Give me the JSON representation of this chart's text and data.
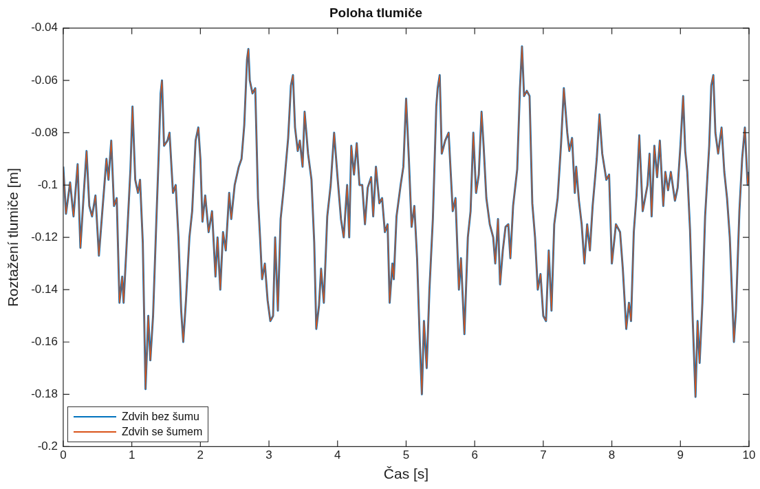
{
  "chart_data": {
    "type": "line",
    "title": "Poloha tlumiče",
    "xlabel": "Čas [s]",
    "ylabel": "Roztažení tlumiče [m]",
    "x": [
      0,
      0.04,
      0.1,
      0.15,
      0.21,
      0.25,
      0.3,
      0.34,
      0.38,
      0.42,
      0.47,
      0.52,
      0.57,
      0.63,
      0.66,
      0.7,
      0.74,
      0.78,
      0.82,
      0.86,
      0.88,
      0.93,
      0.98,
      1.01,
      1.05,
      1.09,
      1.12,
      1.16,
      1.2,
      1.24,
      1.27,
      1.31,
      1.36,
      1.39,
      1.42,
      1.44,
      1.47,
      1.52,
      1.55,
      1.6,
      1.64,
      1.68,
      1.72,
      1.75,
      1.79,
      1.84,
      1.88,
      1.93,
      1.97,
      2,
      2.03,
      2.07,
      2.12,
      2.17,
      2.22,
      2.25,
      2.29,
      2.33,
      2.37,
      2.42,
      2.45,
      2.5,
      2.56,
      2.6,
      2.64,
      2.68,
      2.7,
      2.72,
      2.76,
      2.8,
      2.84,
      2.87,
      2.9,
      2.94,
      2.98,
      3.02,
      3.06,
      3.09,
      3.13,
      3.17,
      3.22,
      3.28,
      3.32,
      3.35,
      3.38,
      3.42,
      3.45,
      3.49,
      3.52,
      3.57,
      3.62,
      3.66,
      3.69,
      3.73,
      3.76,
      3.8,
      3.85,
      3.9,
      3.95,
      4,
      4.05,
      4.09,
      4.14,
      4.17,
      4.2,
      4.24,
      4.28,
      4.32,
      4.36,
      4.4,
      4.44,
      4.49,
      4.52,
      4.56,
      4.61,
      4.65,
      4.69,
      4.73,
      4.76,
      4.8,
      4.82,
      4.86,
      4.92,
      4.96,
      5,
      5.04,
      5.08,
      5.12,
      5.16,
      5.2,
      5.23,
      5.26,
      5.3,
      5.34,
      5.39,
      5.44,
      5.46,
      5.49,
      5.52,
      5.57,
      5.62,
      5.68,
      5.72,
      5.77,
      5.8,
      5.85,
      5.9,
      5.94,
      5.98,
      6.02,
      6.06,
      6.1,
      6.13,
      6.17,
      6.22,
      6.27,
      6.3,
      6.34,
      6.37,
      6.41,
      6.45,
      6.49,
      6.52,
      6.56,
      6.62,
      6.66,
      6.69,
      6.72,
      6.76,
      6.8,
      6.84,
      6.88,
      6.92,
      6.96,
      7,
      7.04,
      7.08,
      7.12,
      7.16,
      7.21,
      7.26,
      7.3,
      7.35,
      7.38,
      7.42,
      7.46,
      7.48,
      7.52,
      7.56,
      7.6,
      7.64,
      7.68,
      7.72,
      7.78,
      7.82,
      7.86,
      7.92,
      7.96,
      8,
      8.06,
      8.12,
      8.16,
      8.21,
      8.25,
      8.28,
      8.32,
      8.36,
      8.4,
      8.45,
      8.52,
      8.55,
      8.58,
      8.62,
      8.66,
      8.7,
      8.75,
      8.78,
      8.82,
      8.86,
      8.92,
      8.96,
      9,
      9.04,
      9.07,
      9.1,
      9.14,
      9.18,
      9.22,
      9.25,
      9.28,
      9.32,
      9.36,
      9.42,
      9.45,
      9.48,
      9.51,
      9.55,
      9.6,
      9.64,
      9.68,
      9.72,
      9.75,
      9.78,
      9.81,
      9.86,
      9.9,
      9.94,
      9.98,
      10
    ],
    "series": [
      {
        "name": "Zdvih bez šumu",
        "color": "#0072bd",
        "values": [
          -0.093,
          -0.111,
          -0.099,
          -0.112,
          -0.092,
          -0.124,
          -0.103,
          -0.087,
          -0.108,
          -0.112,
          -0.104,
          -0.127,
          -0.11,
          -0.09,
          -0.098,
          -0.083,
          -0.108,
          -0.105,
          -0.145,
          -0.135,
          -0.145,
          -0.12,
          -0.094,
          -0.07,
          -0.098,
          -0.103,
          -0.098,
          -0.122,
          -0.178,
          -0.15,
          -0.167,
          -0.15,
          -0.112,
          -0.09,
          -0.065,
          -0.06,
          -0.085,
          -0.083,
          -0.08,
          -0.103,
          -0.1,
          -0.12,
          -0.148,
          -0.16,
          -0.144,
          -0.12,
          -0.11,
          -0.083,
          -0.078,
          -0.09,
          -0.114,
          -0.104,
          -0.118,
          -0.11,
          -0.135,
          -0.12,
          -0.14,
          -0.118,
          -0.125,
          -0.103,
          -0.113,
          -0.1,
          -0.093,
          -0.09,
          -0.077,
          -0.052,
          -0.048,
          -0.06,
          -0.065,
          -0.063,
          -0.105,
          -0.12,
          -0.136,
          -0.13,
          -0.144,
          -0.152,
          -0.15,
          -0.12,
          -0.148,
          -0.113,
          -0.1,
          -0.082,
          -0.062,
          -0.058,
          -0.078,
          -0.087,
          -0.083,
          -0.093,
          -0.072,
          -0.088,
          -0.098,
          -0.122,
          -0.155,
          -0.146,
          -0.132,
          -0.145,
          -0.112,
          -0.1,
          -0.08,
          -0.097,
          -0.113,
          -0.12,
          -0.1,
          -0.12,
          -0.085,
          -0.096,
          -0.084,
          -0.1,
          -0.1,
          -0.115,
          -0.101,
          -0.097,
          -0.112,
          -0.093,
          -0.107,
          -0.105,
          -0.118,
          -0.115,
          -0.145,
          -0.13,
          -0.136,
          -0.112,
          -0.1,
          -0.093,
          -0.067,
          -0.09,
          -0.116,
          -0.108,
          -0.128,
          -0.16,
          -0.18,
          -0.152,
          -0.17,
          -0.14,
          -0.113,
          -0.07,
          -0.063,
          -0.058,
          -0.088,
          -0.083,
          -0.08,
          -0.11,
          -0.105,
          -0.14,
          -0.128,
          -0.157,
          -0.12,
          -0.11,
          -0.08,
          -0.103,
          -0.096,
          -0.072,
          -0.085,
          -0.105,
          -0.115,
          -0.12,
          -0.13,
          -0.113,
          -0.138,
          -0.125,
          -0.116,
          -0.115,
          -0.128,
          -0.108,
          -0.094,
          -0.063,
          -0.047,
          -0.066,
          -0.064,
          -0.066,
          -0.107,
          -0.12,
          -0.14,
          -0.134,
          -0.15,
          -0.152,
          -0.125,
          -0.148,
          -0.115,
          -0.105,
          -0.084,
          -0.063,
          -0.08,
          -0.087,
          -0.082,
          -0.103,
          -0.093,
          -0.106,
          -0.115,
          -0.13,
          -0.115,
          -0.125,
          -0.108,
          -0.09,
          -0.073,
          -0.088,
          -0.098,
          -0.096,
          -0.13,
          -0.115,
          -0.118,
          -0.132,
          -0.155,
          -0.145,
          -0.152,
          -0.118,
          -0.104,
          -0.081,
          -0.11,
          -0.1,
          -0.088,
          -0.112,
          -0.085,
          -0.097,
          -0.083,
          -0.108,
          -0.095,
          -0.102,
          -0.095,
          -0.106,
          -0.101,
          -0.085,
          -0.066,
          -0.087,
          -0.095,
          -0.117,
          -0.152,
          -0.181,
          -0.152,
          -0.168,
          -0.145,
          -0.112,
          -0.085,
          -0.062,
          -0.058,
          -0.08,
          -0.088,
          -0.078,
          -0.095,
          -0.105,
          -0.12,
          -0.14,
          -0.16,
          -0.148,
          -0.11,
          -0.09,
          -0.078,
          -0.1,
          -0.095
        ]
      },
      {
        "name": "Zdvih se šumem",
        "color": "#d95319",
        "values": [
          -0.093,
          -0.111,
          -0.099,
          -0.112,
          -0.092,
          -0.124,
          -0.103,
          -0.087,
          -0.108,
          -0.112,
          -0.104,
          -0.127,
          -0.11,
          -0.09,
          -0.098,
          -0.083,
          -0.108,
          -0.105,
          -0.145,
          -0.135,
          -0.145,
          -0.12,
          -0.094,
          -0.07,
          -0.098,
          -0.103,
          -0.098,
          -0.122,
          -0.178,
          -0.15,
          -0.167,
          -0.15,
          -0.112,
          -0.09,
          -0.065,
          -0.06,
          -0.085,
          -0.083,
          -0.08,
          -0.103,
          -0.1,
          -0.12,
          -0.148,
          -0.16,
          -0.144,
          -0.12,
          -0.11,
          -0.083,
          -0.078,
          -0.09,
          -0.114,
          -0.104,
          -0.118,
          -0.11,
          -0.135,
          -0.12,
          -0.14,
          -0.118,
          -0.125,
          -0.103,
          -0.113,
          -0.1,
          -0.093,
          -0.09,
          -0.077,
          -0.052,
          -0.048,
          -0.06,
          -0.065,
          -0.063,
          -0.105,
          -0.12,
          -0.136,
          -0.13,
          -0.144,
          -0.152,
          -0.15,
          -0.12,
          -0.148,
          -0.113,
          -0.1,
          -0.082,
          -0.062,
          -0.058,
          -0.078,
          -0.087,
          -0.083,
          -0.093,
          -0.072,
          -0.088,
          -0.098,
          -0.122,
          -0.155,
          -0.146,
          -0.132,
          -0.145,
          -0.112,
          -0.1,
          -0.08,
          -0.097,
          -0.113,
          -0.12,
          -0.1,
          -0.12,
          -0.085,
          -0.096,
          -0.084,
          -0.1,
          -0.1,
          -0.115,
          -0.101,
          -0.097,
          -0.112,
          -0.093,
          -0.107,
          -0.105,
          -0.118,
          -0.115,
          -0.145,
          -0.13,
          -0.136,
          -0.112,
          -0.1,
          -0.093,
          -0.067,
          -0.09,
          -0.116,
          -0.108,
          -0.128,
          -0.16,
          -0.18,
          -0.152,
          -0.17,
          -0.14,
          -0.113,
          -0.07,
          -0.063,
          -0.058,
          -0.088,
          -0.083,
          -0.08,
          -0.11,
          -0.105,
          -0.14,
          -0.128,
          -0.157,
          -0.12,
          -0.11,
          -0.08,
          -0.103,
          -0.096,
          -0.072,
          -0.085,
          -0.105,
          -0.115,
          -0.12,
          -0.13,
          -0.113,
          -0.138,
          -0.125,
          -0.116,
          -0.115,
          -0.128,
          -0.108,
          -0.094,
          -0.063,
          -0.047,
          -0.066,
          -0.064,
          -0.066,
          -0.107,
          -0.12,
          -0.14,
          -0.134,
          -0.15,
          -0.152,
          -0.125,
          -0.148,
          -0.115,
          -0.105,
          -0.084,
          -0.063,
          -0.08,
          -0.087,
          -0.082,
          -0.103,
          -0.093,
          -0.106,
          -0.115,
          -0.13,
          -0.115,
          -0.125,
          -0.108,
          -0.09,
          -0.073,
          -0.088,
          -0.098,
          -0.096,
          -0.13,
          -0.115,
          -0.118,
          -0.132,
          -0.155,
          -0.145,
          -0.152,
          -0.118,
          -0.104,
          -0.081,
          -0.11,
          -0.1,
          -0.088,
          -0.112,
          -0.085,
          -0.097,
          -0.083,
          -0.108,
          -0.095,
          -0.102,
          -0.095,
          -0.106,
          -0.101,
          -0.085,
          -0.066,
          -0.087,
          -0.095,
          -0.117,
          -0.152,
          -0.181,
          -0.152,
          -0.168,
          -0.145,
          -0.112,
          -0.085,
          -0.062,
          -0.058,
          -0.08,
          -0.088,
          -0.078,
          -0.095,
          -0.105,
          -0.12,
          -0.14,
          -0.16,
          -0.148,
          -0.11,
          -0.09,
          -0.078,
          -0.1,
          -0.095
        ]
      }
    ],
    "xlim": [
      0,
      10
    ],
    "xticks": [
      0,
      1,
      2,
      3,
      4,
      5,
      6,
      7,
      8,
      9,
      10
    ],
    "ylim": [
      -0.2,
      -0.04
    ],
    "yticks": [
      -0.2,
      -0.18,
      -0.16,
      -0.14,
      -0.12,
      -0.1,
      -0.08,
      -0.06,
      -0.04
    ],
    "grid": false,
    "legend": "bottom left",
    "marker": "none",
    "line_style": "solid"
  }
}
